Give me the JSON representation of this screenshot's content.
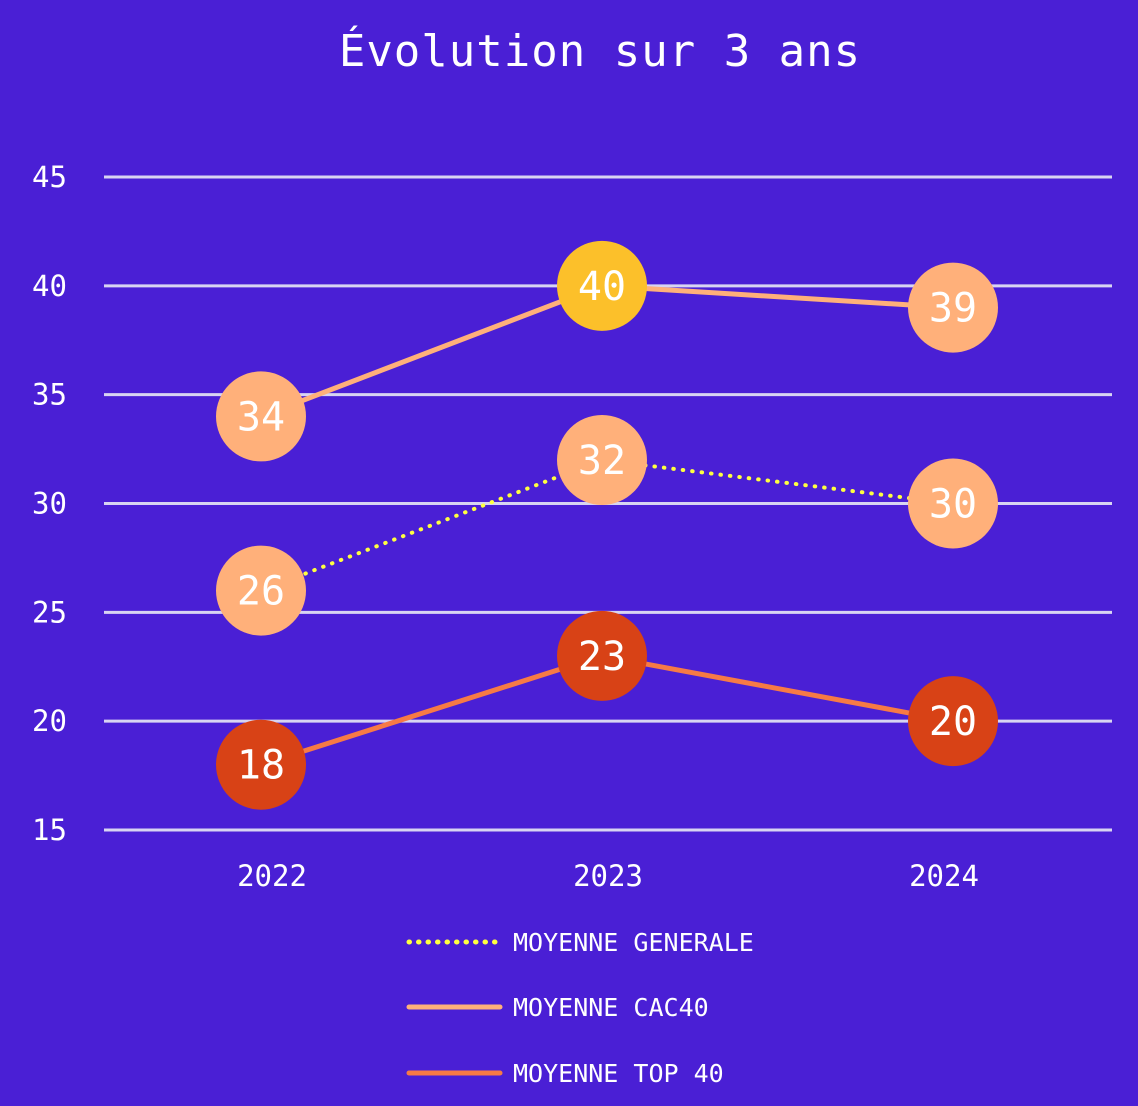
{
  "chart_data": {
    "type": "line",
    "title": "Évolution sur 3 ans",
    "categories": [
      "2022",
      "2023",
      "2024"
    ],
    "ylim": [
      15,
      45
    ],
    "yticks": [
      15,
      20,
      25,
      30,
      35,
      40,
      45
    ],
    "grid": true,
    "legend_position": "bottom",
    "series": [
      {
        "name": "MOYENNE GENERALE",
        "values": [
          26,
          32,
          30
        ],
        "labels": [
          "26",
          "32",
          "30"
        ],
        "line_color": "#ffff40",
        "line_style": "dotted",
        "marker_colors": [
          "#ffb07a",
          "#ffb07a",
          "#ffb07a"
        ]
      },
      {
        "name": "MOYENNE CAC40",
        "values": [
          34,
          40,
          39
        ],
        "labels": [
          "34",
          "40",
          "39"
        ],
        "line_color": "#ffb07a",
        "line_style": "solid",
        "marker_colors": [
          "#ffb07a",
          "#fcc02a",
          "#ffb07a"
        ]
      },
      {
        "name": "MOYENNE TOP 40",
        "values": [
          18,
          23,
          20
        ],
        "labels": [
          "18",
          "23",
          "20"
        ],
        "line_color": "#f77a45",
        "line_style": "solid",
        "marker_colors": [
          "#d84216",
          "#d84216",
          "#d84216"
        ]
      }
    ]
  },
  "colors": {
    "background": "#4a1fd5",
    "gridline": "#d8d4f2",
    "text": "#ffffff"
  }
}
